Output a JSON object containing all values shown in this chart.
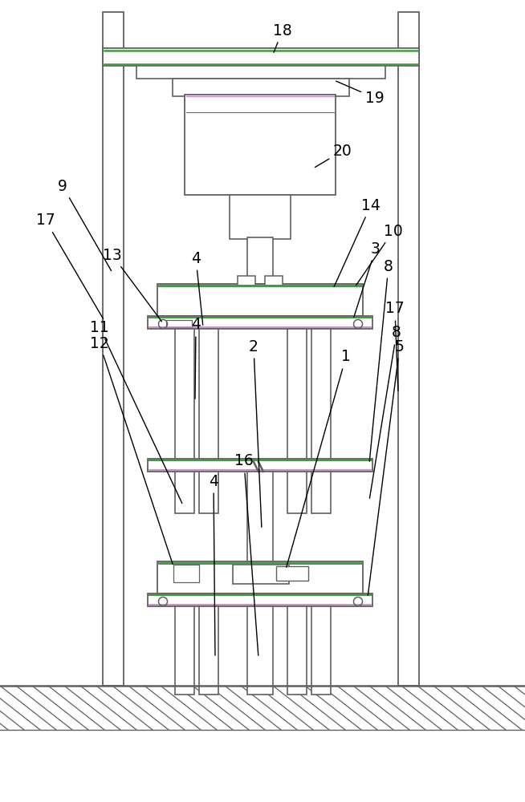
{
  "fig_width": 6.54,
  "fig_height": 10.0,
  "bg_color": "#ffffff",
  "gc": "#606060",
  "green": "#3a9e3a",
  "purple": "#c080c0",
  "hatch_color": "#606060"
}
